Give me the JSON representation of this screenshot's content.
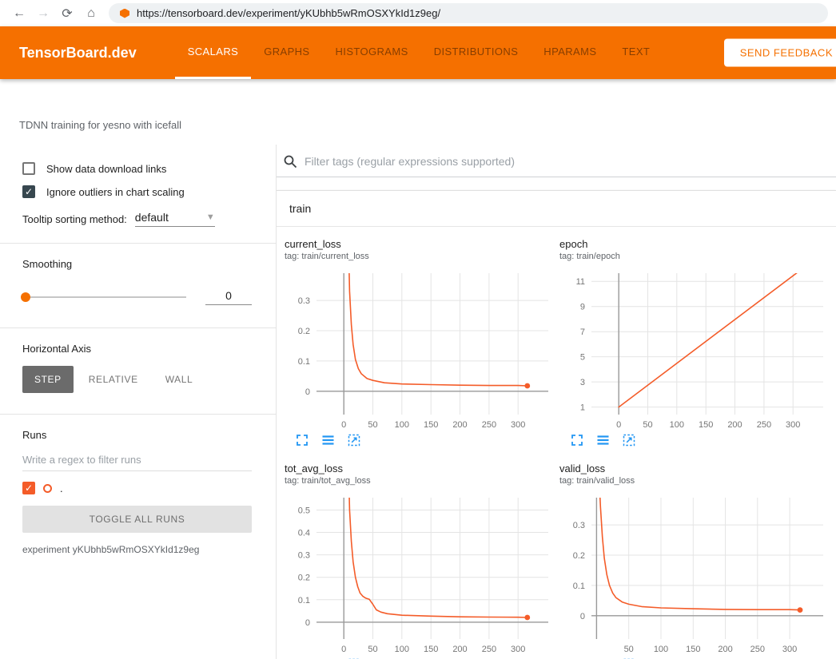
{
  "browser": {
    "url": "https://tensorboard.dev/experiment/yKUbhb5wRmOSXYkId1z9eg/"
  },
  "header": {
    "logo": "TensorBoard.dev",
    "tabs": [
      {
        "label": "SCALARS",
        "active": true
      },
      {
        "label": "GRAPHS",
        "active": false
      },
      {
        "label": "HISTOGRAMS",
        "active": false
      },
      {
        "label": "DISTRIBUTIONS",
        "active": false
      },
      {
        "label": "HPARAMS",
        "active": false
      },
      {
        "label": "TEXT",
        "active": false
      }
    ],
    "feedback_button": "SEND FEEDBACK"
  },
  "experiment": {
    "name": "TDNN training for yesno with icefall"
  },
  "colors": {
    "accent_orange": "#f57000",
    "run_color": "#f45c29",
    "icon_blue": "#2196f3",
    "checkbox_dark": "#37474f"
  },
  "sidebar": {
    "checkboxes": [
      {
        "label": "Show data download links",
        "checked": false
      },
      {
        "label": "Ignore outliers in chart scaling",
        "checked": true
      }
    ],
    "tooltip_sorting": {
      "label": "Tooltip sorting method:",
      "value": "default"
    },
    "smoothing": {
      "label": "Smoothing",
      "value": "0"
    },
    "horizontal_axis": {
      "label": "Horizontal Axis",
      "options": [
        "STEP",
        "RELATIVE",
        "WALL"
      ],
      "selected": "STEP"
    },
    "runs": {
      "label": "Runs",
      "filter_placeholder": "Write a regex to filter runs",
      "run_items": [
        {
          "name": ".",
          "checked": true
        }
      ],
      "toggle_button": "TOGGLE ALL RUNS",
      "experiment_note": "experiment yKUbhb5wRmOSXYkId1z9eg"
    }
  },
  "main": {
    "filter_placeholder": "Filter tags (regular expressions supported)",
    "group": "train"
  },
  "chart_data": [
    {
      "type": "line",
      "title": "current_loss",
      "tag": "tag: train/current_loss",
      "xlim": [
        -47,
        352
      ],
      "ylim": [
        -0.077,
        0.39
      ],
      "xticks": [
        0,
        50,
        100,
        150,
        200,
        250,
        300
      ],
      "yticks": [
        0,
        0.1,
        0.2,
        0.3
      ],
      "series": [
        {
          "name": ".",
          "color": "#f45c29",
          "end_dot": true,
          "x": [
            6,
            8,
            10,
            13,
            16,
            20,
            25,
            30,
            40,
            50,
            70,
            100,
            150,
            200,
            250,
            300,
            316
          ],
          "y": [
            0.85,
            0.5,
            0.33,
            0.22,
            0.155,
            0.105,
            0.075,
            0.058,
            0.042,
            0.036,
            0.028,
            0.024,
            0.022,
            0.02,
            0.019,
            0.019,
            0.018
          ]
        }
      ]
    },
    {
      "type": "line",
      "title": "epoch",
      "tag": "tag: train/epoch",
      "xlim": [
        -47,
        352
      ],
      "ylim": [
        0.4,
        11.65
      ],
      "xticks": [
        0,
        50,
        100,
        150,
        200,
        250,
        300
      ],
      "yticks": [
        1,
        3,
        5,
        7,
        9,
        11
      ],
      "series": [
        {
          "name": ".",
          "color": "#f45c29",
          "end_dot": false,
          "x": [
            0,
            316
          ],
          "y": [
            1,
            12
          ]
        }
      ]
    },
    {
      "type": "line",
      "title": "tot_avg_loss",
      "tag": "tag: train/tot_avg_loss",
      "xlim": [
        -47,
        352
      ],
      "ylim": [
        -0.075,
        0.555
      ],
      "xticks": [
        0,
        50,
        100,
        150,
        200,
        250,
        300
      ],
      "yticks": [
        0,
        0.1,
        0.2,
        0.3,
        0.4,
        0.5
      ],
      "series": [
        {
          "name": ".",
          "color": "#f45c29",
          "end_dot": true,
          "x": [
            6,
            8,
            10,
            13,
            16,
            20,
            24,
            28,
            33,
            38,
            44,
            50,
            56,
            64,
            75,
            100,
            150,
            200,
            250,
            300,
            316
          ],
          "y": [
            1.1,
            0.72,
            0.5,
            0.36,
            0.27,
            0.2,
            0.158,
            0.13,
            0.115,
            0.107,
            0.102,
            0.08,
            0.055,
            0.045,
            0.038,
            0.031,
            0.027,
            0.024,
            0.023,
            0.022,
            0.021
          ]
        }
      ]
    },
    {
      "type": "line",
      "title": "valid_loss",
      "tag": "tag: train/valid_loss",
      "xlim": [
        -8,
        352
      ],
      "ylim": [
        -0.077,
        0.39
      ],
      "xticks": [
        50,
        100,
        150,
        200,
        250,
        300
      ],
      "yticks": [
        0,
        0.1,
        0.2,
        0.3
      ],
      "series": [
        {
          "name": ".",
          "color": "#f45c29",
          "end_dot": true,
          "x": [
            0,
            2,
            4,
            6,
            9,
            12,
            16,
            20,
            25,
            30,
            40,
            50,
            70,
            100,
            150,
            200,
            250,
            300,
            316
          ],
          "y": [
            0.8,
            0.58,
            0.45,
            0.36,
            0.26,
            0.19,
            0.135,
            0.1,
            0.075,
            0.06,
            0.045,
            0.038,
            0.03,
            0.026,
            0.023,
            0.021,
            0.02,
            0.02,
            0.019
          ]
        }
      ]
    }
  ]
}
